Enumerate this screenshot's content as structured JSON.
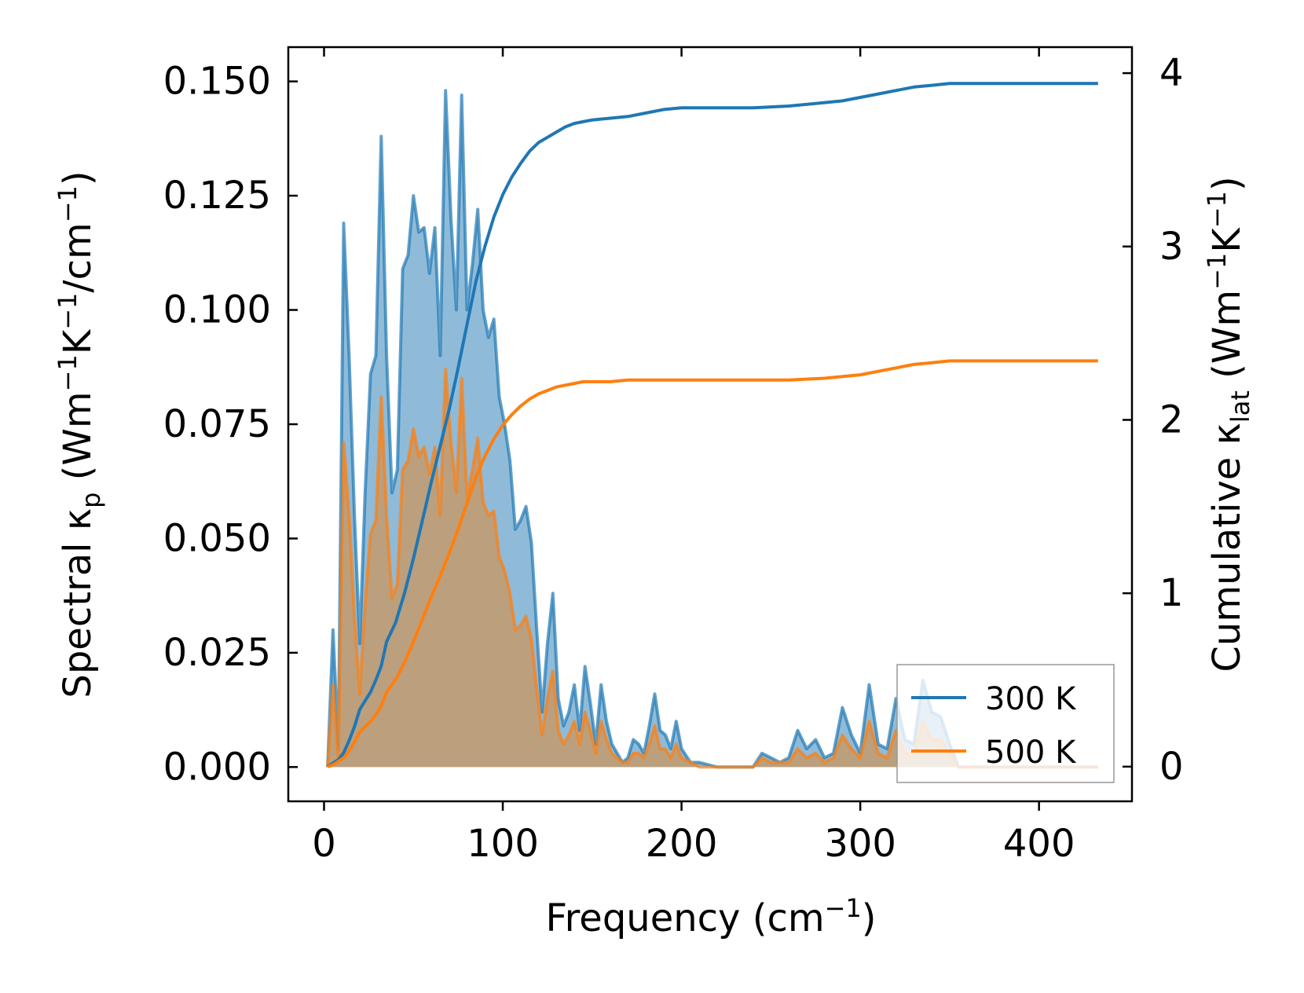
{
  "chart_data": {
    "type": "line",
    "title": "",
    "xlabel": "Frequency (cm⁻¹)",
    "ylabel_left": "Spectral κₚ (Wm⁻¹K⁻¹/cm⁻¹)",
    "ylabel_right": "Cumulative κ_lat (Wm⁻¹K⁻¹)",
    "xlim": [
      -20,
      452
    ],
    "ylim_left": [
      -0.0075,
      0.1575
    ],
    "ylim_right": [
      -0.2,
      4.15
    ],
    "x_ticks": [
      0,
      100,
      200,
      300,
      400
    ],
    "x_tick_labels": [
      "0",
      "100",
      "200",
      "300",
      "400"
    ],
    "y_left_ticks": [
      0.0,
      0.025,
      0.05,
      0.075,
      0.1,
      0.125,
      0.15
    ],
    "y_left_tick_labels": [
      "0.000",
      "0.025",
      "0.050",
      "0.075",
      "0.100",
      "0.125",
      "0.150"
    ],
    "y_right_ticks": [
      0,
      1,
      2,
      3,
      4
    ],
    "y_right_tick_labels": [
      "0",
      "1",
      "2",
      "3",
      "4"
    ],
    "legend": {
      "position": "lower-right",
      "entries": [
        "300 K",
        "500 K"
      ]
    },
    "colors": {
      "300 K": "#1f77b4",
      "500 K": "#ff7f0e",
      "overlap_fill": "#c49a6c"
    },
    "series": [
      {
        "name": "300 K",
        "kind": "spectral",
        "axis": "left",
        "x": [
          2,
          5,
          8,
          11,
          14,
          17,
          20,
          23,
          26,
          29,
          32,
          35,
          38,
          41,
          44,
          47,
          50,
          53,
          56,
          59,
          62,
          65,
          68,
          71,
          74,
          77,
          80,
          83,
          86,
          89,
          92,
          95,
          98,
          101,
          104,
          107,
          110,
          113,
          116,
          119,
          122,
          125,
          128,
          131,
          134,
          137,
          140,
          143,
          146,
          149,
          152,
          155,
          158,
          161,
          164,
          167,
          170,
          173,
          176,
          179,
          182,
          185,
          188,
          191,
          194,
          197,
          200,
          205,
          210,
          220,
          230,
          240,
          245,
          250,
          255,
          260,
          265,
          270,
          275,
          280,
          285,
          290,
          295,
          300,
          305,
          310,
          315,
          320,
          325,
          330,
          335,
          340,
          345,
          350,
          355,
          360,
          380,
          400,
          433
        ],
        "values": [
          0,
          0.03,
          0.004,
          0.119,
          0.09,
          0.055,
          0.027,
          0.06,
          0.086,
          0.09,
          0.138,
          0.09,
          0.06,
          0.065,
          0.109,
          0.112,
          0.125,
          0.117,
          0.118,
          0.108,
          0.118,
          0.09,
          0.148,
          0.12,
          0.1,
          0.147,
          0.1,
          0.11,
          0.122,
          0.1,
          0.094,
          0.098,
          0.081,
          0.075,
          0.067,
          0.052,
          0.054,
          0.057,
          0.049,
          0.03,
          0.012,
          0.027,
          0.038,
          0.015,
          0.009,
          0.012,
          0.018,
          0.008,
          0.022,
          0.014,
          0.005,
          0.018,
          0.01,
          0.005,
          0.003,
          0.001,
          0.002,
          0.006,
          0.005,
          0.003,
          0.009,
          0.016,
          0.008,
          0.007,
          0.004,
          0.01,
          0.004,
          0.001,
          0.001,
          0.0,
          0.0,
          0.0,
          0.003,
          0.002,
          0.001,
          0.002,
          0.008,
          0.004,
          0.006,
          0.002,
          0.003,
          0.013,
          0.007,
          0.003,
          0.018,
          0.005,
          0.004,
          0.015,
          0.006,
          0.005,
          0.019,
          0.012,
          0.011,
          0.005,
          0.0,
          0.0,
          0.0,
          0.0,
          0.0
        ]
      },
      {
        "name": "500 K",
        "kind": "spectral",
        "axis": "left",
        "x": [
          2,
          5,
          8,
          11,
          14,
          17,
          20,
          23,
          26,
          29,
          32,
          35,
          38,
          41,
          44,
          47,
          50,
          53,
          56,
          59,
          62,
          65,
          68,
          71,
          74,
          77,
          80,
          83,
          86,
          89,
          92,
          95,
          98,
          101,
          104,
          107,
          110,
          113,
          116,
          119,
          122,
          125,
          128,
          131,
          134,
          137,
          140,
          143,
          146,
          149,
          152,
          155,
          158,
          161,
          164,
          167,
          170,
          173,
          176,
          179,
          182,
          185,
          188,
          191,
          194,
          197,
          200,
          205,
          210,
          220,
          230,
          240,
          245,
          250,
          255,
          260,
          265,
          270,
          275,
          280,
          285,
          290,
          295,
          300,
          305,
          310,
          315,
          320,
          325,
          330,
          335,
          340,
          345,
          350,
          355,
          360,
          380,
          400,
          433
        ],
        "values": [
          0,
          0.018,
          0.002,
          0.071,
          0.055,
          0.033,
          0.016,
          0.036,
          0.051,
          0.054,
          0.081,
          0.055,
          0.037,
          0.04,
          0.065,
          0.067,
          0.074,
          0.068,
          0.07,
          0.064,
          0.07,
          0.055,
          0.087,
          0.071,
          0.06,
          0.085,
          0.059,
          0.065,
          0.072,
          0.058,
          0.055,
          0.056,
          0.046,
          0.043,
          0.038,
          0.03,
          0.031,
          0.033,
          0.028,
          0.017,
          0.007,
          0.015,
          0.021,
          0.008,
          0.005,
          0.007,
          0.01,
          0.005,
          0.012,
          0.008,
          0.003,
          0.01,
          0.006,
          0.003,
          0.002,
          0.001,
          0.001,
          0.003,
          0.003,
          0.002,
          0.005,
          0.009,
          0.004,
          0.004,
          0.002,
          0.005,
          0.002,
          0.001,
          0.0,
          0.0,
          0.0,
          0.0,
          0.002,
          0.001,
          0.001,
          0.001,
          0.004,
          0.002,
          0.003,
          0.001,
          0.002,
          0.007,
          0.004,
          0.002,
          0.01,
          0.003,
          0.002,
          0.008,
          0.003,
          0.003,
          0.01,
          0.006,
          0.006,
          0.003,
          0.0,
          0.0,
          0.0,
          0.0,
          0.0
        ]
      },
      {
        "name": "300 K",
        "kind": "cumulative",
        "axis": "right",
        "x": [
          2,
          5,
          8,
          11,
          14,
          17,
          20,
          23,
          26,
          29,
          32,
          35,
          40,
          45,
          50,
          55,
          60,
          65,
          70,
          75,
          80,
          85,
          90,
          95,
          100,
          105,
          110,
          115,
          120,
          125,
          130,
          135,
          140,
          145,
          150,
          160,
          170,
          180,
          190,
          200,
          210,
          220,
          240,
          260,
          280,
          290,
          300,
          310,
          320,
          330,
          340,
          350,
          360,
          380,
          400,
          433
        ],
        "values": [
          0,
          0.02,
          0.04,
          0.08,
          0.15,
          0.23,
          0.33,
          0.38,
          0.43,
          0.5,
          0.58,
          0.72,
          0.83,
          1.0,
          1.2,
          1.42,
          1.64,
          1.85,
          2.06,
          2.3,
          2.55,
          2.8,
          3.0,
          3.17,
          3.3,
          3.4,
          3.48,
          3.55,
          3.6,
          3.63,
          3.66,
          3.69,
          3.71,
          3.72,
          3.73,
          3.74,
          3.75,
          3.77,
          3.79,
          3.8,
          3.8,
          3.8,
          3.8,
          3.81,
          3.83,
          3.84,
          3.86,
          3.88,
          3.9,
          3.92,
          3.93,
          3.94,
          3.94,
          3.94,
          3.94,
          3.94
        ]
      },
      {
        "name": "500 K",
        "kind": "cumulative",
        "axis": "right",
        "x": [
          2,
          5,
          8,
          11,
          14,
          17,
          20,
          23,
          26,
          29,
          32,
          35,
          40,
          45,
          50,
          55,
          60,
          65,
          70,
          75,
          80,
          85,
          90,
          95,
          100,
          105,
          110,
          115,
          120,
          125,
          130,
          135,
          140,
          145,
          150,
          160,
          170,
          180,
          190,
          200,
          210,
          220,
          240,
          260,
          280,
          290,
          300,
          310,
          320,
          330,
          340,
          350,
          360,
          380,
          400,
          433
        ],
        "values": [
          0,
          0.01,
          0.03,
          0.05,
          0.09,
          0.14,
          0.2,
          0.23,
          0.26,
          0.3,
          0.35,
          0.43,
          0.5,
          0.6,
          0.72,
          0.85,
          0.98,
          1.1,
          1.23,
          1.37,
          1.52,
          1.67,
          1.79,
          1.89,
          1.97,
          2.03,
          2.08,
          2.12,
          2.15,
          2.17,
          2.19,
          2.2,
          2.21,
          2.22,
          2.22,
          2.22,
          2.23,
          2.23,
          2.23,
          2.23,
          2.23,
          2.23,
          2.23,
          2.23,
          2.24,
          2.25,
          2.26,
          2.28,
          2.3,
          2.32,
          2.33,
          2.34,
          2.34,
          2.34,
          2.34,
          2.34
        ]
      }
    ]
  }
}
